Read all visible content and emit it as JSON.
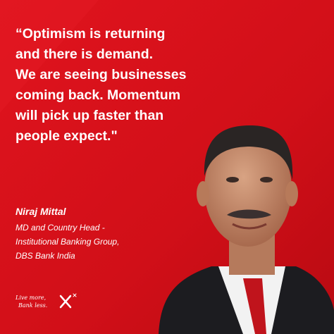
{
  "quote": {
    "lines": [
      "“Optimism is returning",
      "and there is demand.",
      "We are seeing businesses",
      "coming back. Momentum",
      "will pick up faster than",
      "people expect.\""
    ]
  },
  "speaker": {
    "name": "Niraj Mittal",
    "title_lines": [
      "MD and Country Head -",
      "Institutional Banking Group,",
      "DBS Bank India"
    ]
  },
  "logo": {
    "lines": [
      "Live more,",
      "Bank less."
    ]
  }
}
